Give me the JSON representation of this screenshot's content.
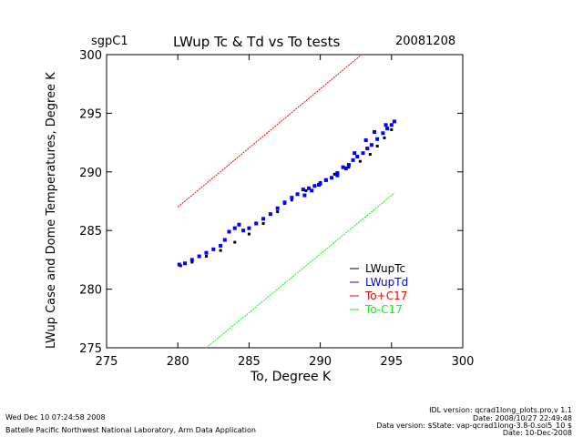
{
  "header": {
    "site": "sgpC1",
    "title": "LWup Tc & Td vs To tests",
    "date": "20081208"
  },
  "footer": {
    "timestamp": "Wed Dec 10 07:24:58 2008",
    "organization": "Battelle Pacific Northwest National Laboratory, Arm Data Application",
    "idl_version": "IDL version: qcrad1long_plots.pro,v 1.1",
    "idl_date": "Date: 2008/10/27 22:49:48",
    "data_version": "Data version: $State: vap-qcrad1long-3.8-0.sol5_10 $",
    "data_date": "Date: 10-Dec-2008"
  },
  "colors": {
    "tc": "#000000",
    "td": "#0000ff",
    "plus": "#ff0000",
    "minus": "#00ff00"
  },
  "chart_data": {
    "type": "scatter",
    "title": "LWup Tc & Td vs To tests",
    "xlabel": "To, Degree K",
    "ylabel": "LWup Case and Dome Temperatures, Degree K",
    "xlim": [
      275,
      300
    ],
    "ylim": [
      275,
      300
    ],
    "xticks": [
      "275",
      "280",
      "285",
      "290",
      "295",
      "300"
    ],
    "yticks": [
      "275",
      "280",
      "285",
      "290",
      "295",
      "300"
    ],
    "legend_position": "lower-right",
    "series": [
      {
        "name": "LWupTc",
        "color": "#000000",
        "x": [
          280.2,
          281.0,
          282.0,
          283.0,
          284.0,
          285.0,
          286.0,
          287.0,
          287.5,
          288.0,
          289.0,
          290.0,
          291.0,
          292.0,
          292.8,
          293.5,
          294.0,
          294.5,
          295.0
        ],
        "y": [
          282.0,
          282.3,
          282.8,
          283.3,
          284.0,
          284.7,
          285.6,
          286.6,
          287.3,
          287.6,
          288.4,
          289.1,
          289.8,
          290.4,
          290.9,
          291.5,
          292.2,
          292.9,
          293.6
        ]
      },
      {
        "name": "LWupTd",
        "color": "#0000ff",
        "x": [
          280.1,
          280.5,
          281.0,
          281.5,
          282.0,
          282.5,
          283.0,
          283.3,
          283.6,
          284.0,
          284.3,
          284.6,
          285.0,
          285.5,
          286.0,
          286.5,
          287.0,
          287.5,
          288.0,
          288.4,
          288.8,
          289.2,
          289.6,
          290.0,
          290.4,
          290.8,
          291.2,
          291.6,
          292.0,
          292.3,
          292.6,
          293.0,
          293.3,
          293.6,
          294.0,
          294.4,
          294.7,
          295.0,
          295.2,
          288.9,
          289.4,
          289.9,
          290.4,
          291.2,
          291.8,
          292.4,
          293.2,
          293.8,
          294.6
        ],
        "y": [
          282.1,
          282.2,
          282.5,
          282.8,
          283.1,
          283.4,
          283.7,
          284.2,
          284.9,
          285.2,
          285.5,
          285.0,
          285.2,
          285.6,
          286.0,
          286.4,
          286.9,
          287.4,
          287.8,
          288.1,
          288.5,
          288.6,
          288.8,
          289.0,
          289.3,
          289.5,
          289.9,
          290.4,
          290.6,
          291.0,
          291.3,
          291.6,
          292.0,
          292.3,
          292.8,
          293.3,
          293.7,
          294.0,
          294.3,
          288.0,
          288.4,
          288.9,
          289.3,
          289.7,
          290.3,
          291.6,
          292.7,
          293.4,
          294.0
        ]
      },
      {
        "name": "To+C17",
        "color": "#ff0000",
        "x": [
          280.0,
          292.8
        ],
        "y": [
          287.0,
          299.9
        ]
      },
      {
        "name": "To-C17",
        "color": "#00ff00",
        "x": [
          282.0,
          295.2
        ],
        "y": [
          275.0,
          288.2
        ]
      }
    ]
  }
}
